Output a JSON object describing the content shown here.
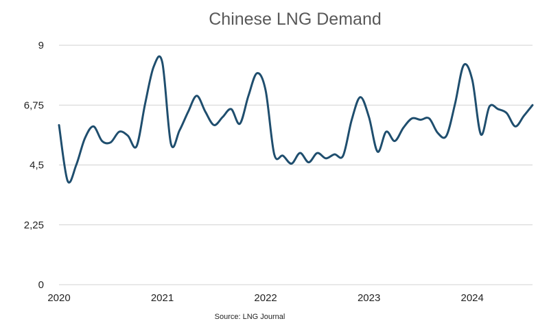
{
  "chart_data": {
    "type": "line",
    "title": "Chinese LNG Demand",
    "xlabel": "",
    "ylabel": "",
    "source": "Source: LNG Journal",
    "x_ticks": [
      "2020",
      "2021",
      "2022",
      "2023",
      "2024"
    ],
    "y_ticks": [
      "0",
      "2,25",
      "4,5",
      "6,75",
      "9"
    ],
    "ylim": [
      0,
      9
    ],
    "xlim": [
      "2020-01",
      "2024-08"
    ],
    "grid": true,
    "legend": "none",
    "line_color": "#1f4e6e",
    "series": [
      {
        "x": [
          "2020-01",
          "2020-02",
          "2020-03",
          "2020-04",
          "2020-05",
          "2020-06",
          "2020-07",
          "2020-08",
          "2020-09",
          "2020-10",
          "2020-11",
          "2020-12",
          "2021-01",
          "2021-02",
          "2021-03",
          "2021-04",
          "2021-05",
          "2021-06",
          "2021-07",
          "2021-08",
          "2021-09",
          "2021-10",
          "2021-11",
          "2021-12",
          "2022-01",
          "2022-02",
          "2022-03",
          "2022-04",
          "2022-05",
          "2022-06",
          "2022-07",
          "2022-08",
          "2022-09",
          "2022-10",
          "2022-11",
          "2022-12",
          "2023-01",
          "2023-02",
          "2023-03",
          "2023-04",
          "2023-05",
          "2023-06",
          "2023-07",
          "2023-08",
          "2023-09",
          "2023-10",
          "2023-11",
          "2023-12",
          "2024-01",
          "2024-02",
          "2024-03",
          "2024-04",
          "2024-05",
          "2024-06",
          "2024-07",
          "2024-08"
        ],
        "values": [
          6.0,
          3.9,
          4.5,
          5.5,
          5.95,
          5.4,
          5.35,
          5.75,
          5.6,
          5.2,
          6.8,
          8.2,
          8.35,
          5.3,
          5.8,
          6.5,
          7.1,
          6.5,
          6.0,
          6.3,
          6.6,
          6.05,
          7.1,
          7.95,
          7.3,
          4.9,
          4.85,
          4.55,
          4.95,
          4.6,
          4.95,
          4.75,
          4.9,
          4.85,
          6.2,
          7.05,
          6.3,
          5.0,
          5.75,
          5.4,
          5.9,
          6.25,
          6.2,
          6.25,
          5.7,
          5.6,
          6.8,
          8.25,
          7.7,
          5.65,
          6.7,
          6.6,
          6.45,
          5.95,
          6.35,
          6.75
        ]
      }
    ]
  }
}
